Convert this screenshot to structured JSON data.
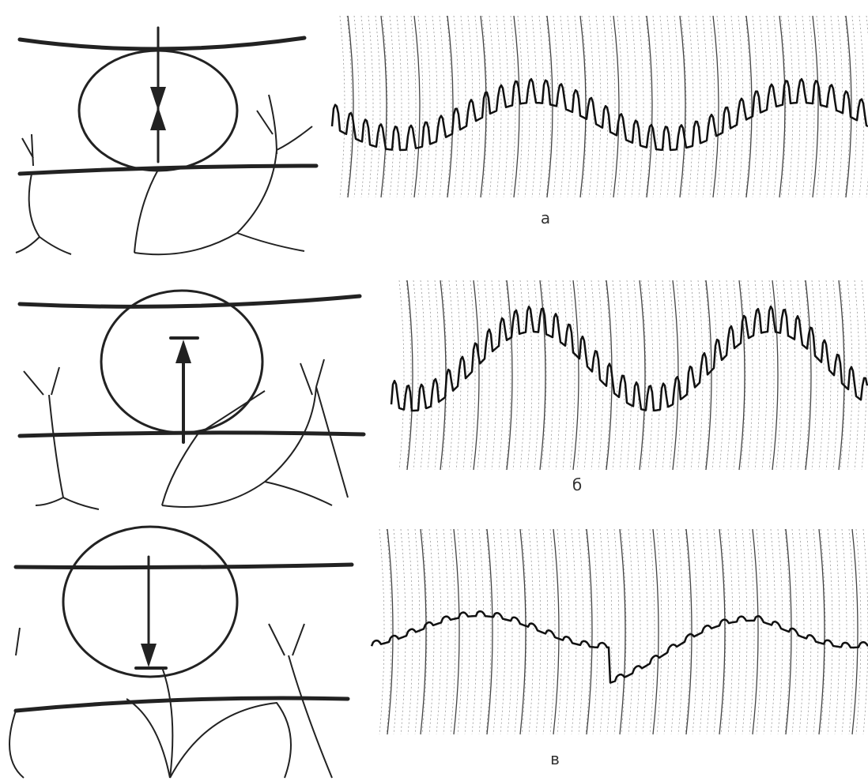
{
  "panels": [
    {
      "label": "а"
    },
    {
      "label": "б"
    },
    {
      "label": "в"
    }
  ]
}
